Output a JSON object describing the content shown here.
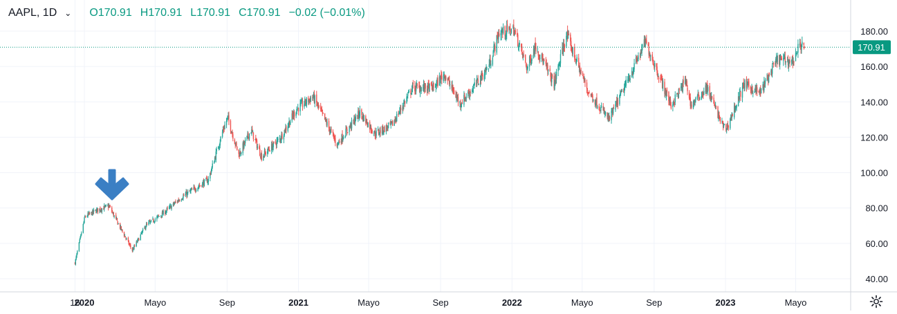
{
  "legend": {
    "symbol": "AAPL, 1D",
    "open": "O170.91",
    "high": "H170.91",
    "low": "L170.91",
    "close": "C170.91",
    "change": "−0.02 (−0.01%)"
  },
  "colors": {
    "up": "#26a69a",
    "down": "#ef5350",
    "grid": "#f0f3fa",
    "axis_text": "#131722",
    "price_badge": "#089981",
    "arrow": "#3b7fc4"
  },
  "chart_data": {
    "type": "candlestick",
    "y_ticks": [
      "40.00",
      "60.00",
      "80.00",
      "100.00",
      "120.00",
      "140.00",
      "160.00",
      "180.00"
    ],
    "ylim": [
      35,
      195
    ],
    "x_ticks": [
      {
        "label": "16",
        "bold": false
      },
      {
        "label": "2020",
        "bold": true
      },
      {
        "label": "Mayo",
        "bold": false
      },
      {
        "label": "Sep",
        "bold": false
      },
      {
        "label": "2021",
        "bold": true
      },
      {
        "label": "Mayo",
        "bold": false
      },
      {
        "label": "Sep",
        "bold": false
      },
      {
        "label": "2022",
        "bold": true
      },
      {
        "label": "Mayo",
        "bold": false
      },
      {
        "label": "Sep",
        "bold": false
      },
      {
        "label": "2023",
        "bold": true
      },
      {
        "label": "Mayo",
        "bold": false
      }
    ],
    "last_price": 170.91,
    "last_price_label": "170.91",
    "trend_points": [
      [
        "2019-12-16",
        49
      ],
      [
        "2020-01-02",
        75
      ],
      [
        "2020-01-24",
        79
      ],
      [
        "2020-02-12",
        81
      ],
      [
        "2020-03-23",
        56
      ],
      [
        "2020-04-15",
        70
      ],
      [
        "2020-05-15",
        77
      ],
      [
        "2020-06-15",
        86
      ],
      [
        "2020-07-31",
        96
      ],
      [
        "2020-08-25",
        124
      ],
      [
        "2020-09-02",
        131
      ],
      [
        "2020-09-21",
        110
      ],
      [
        "2020-10-12",
        124
      ],
      [
        "2020-10-30",
        109
      ],
      [
        "2020-11-30",
        119
      ],
      [
        "2020-12-29",
        136
      ],
      [
        "2021-01-26",
        143
      ],
      [
        "2021-03-08",
        116
      ],
      [
        "2021-04-16",
        134
      ],
      [
        "2021-05-12",
        122
      ],
      [
        "2021-06-10",
        127
      ],
      [
        "2021-07-15",
        148
      ],
      [
        "2021-08-20",
        148
      ],
      [
        "2021-09-07",
        156
      ],
      [
        "2021-10-04",
        139
      ],
      [
        "2021-10-29",
        149
      ],
      [
        "2021-11-22",
        160
      ],
      [
        "2021-12-10",
        179
      ],
      [
        "2022-01-04",
        181
      ],
      [
        "2022-01-27",
        159
      ],
      [
        "2022-02-10",
        172
      ],
      [
        "2022-03-14",
        150
      ],
      [
        "2022-04-04",
        178
      ],
      [
        "2022-05-11",
        146
      ],
      [
        "2022-06-16",
        130
      ],
      [
        "2022-07-15",
        150
      ],
      [
        "2022-08-17",
        174
      ],
      [
        "2022-09-30",
        138
      ],
      [
        "2022-10-25",
        152
      ],
      [
        "2022-11-03",
        138
      ],
      [
        "2022-11-30",
        148
      ],
      [
        "2022-12-28",
        126
      ],
      [
        "2023-01-03",
        125
      ],
      [
        "2023-02-02",
        150
      ],
      [
        "2023-03-01",
        145
      ],
      [
        "2023-03-31",
        164
      ],
      [
        "2023-04-26",
        163
      ],
      [
        "2023-05-09",
        173
      ],
      [
        "2023-05-16",
        171
      ]
    ]
  }
}
